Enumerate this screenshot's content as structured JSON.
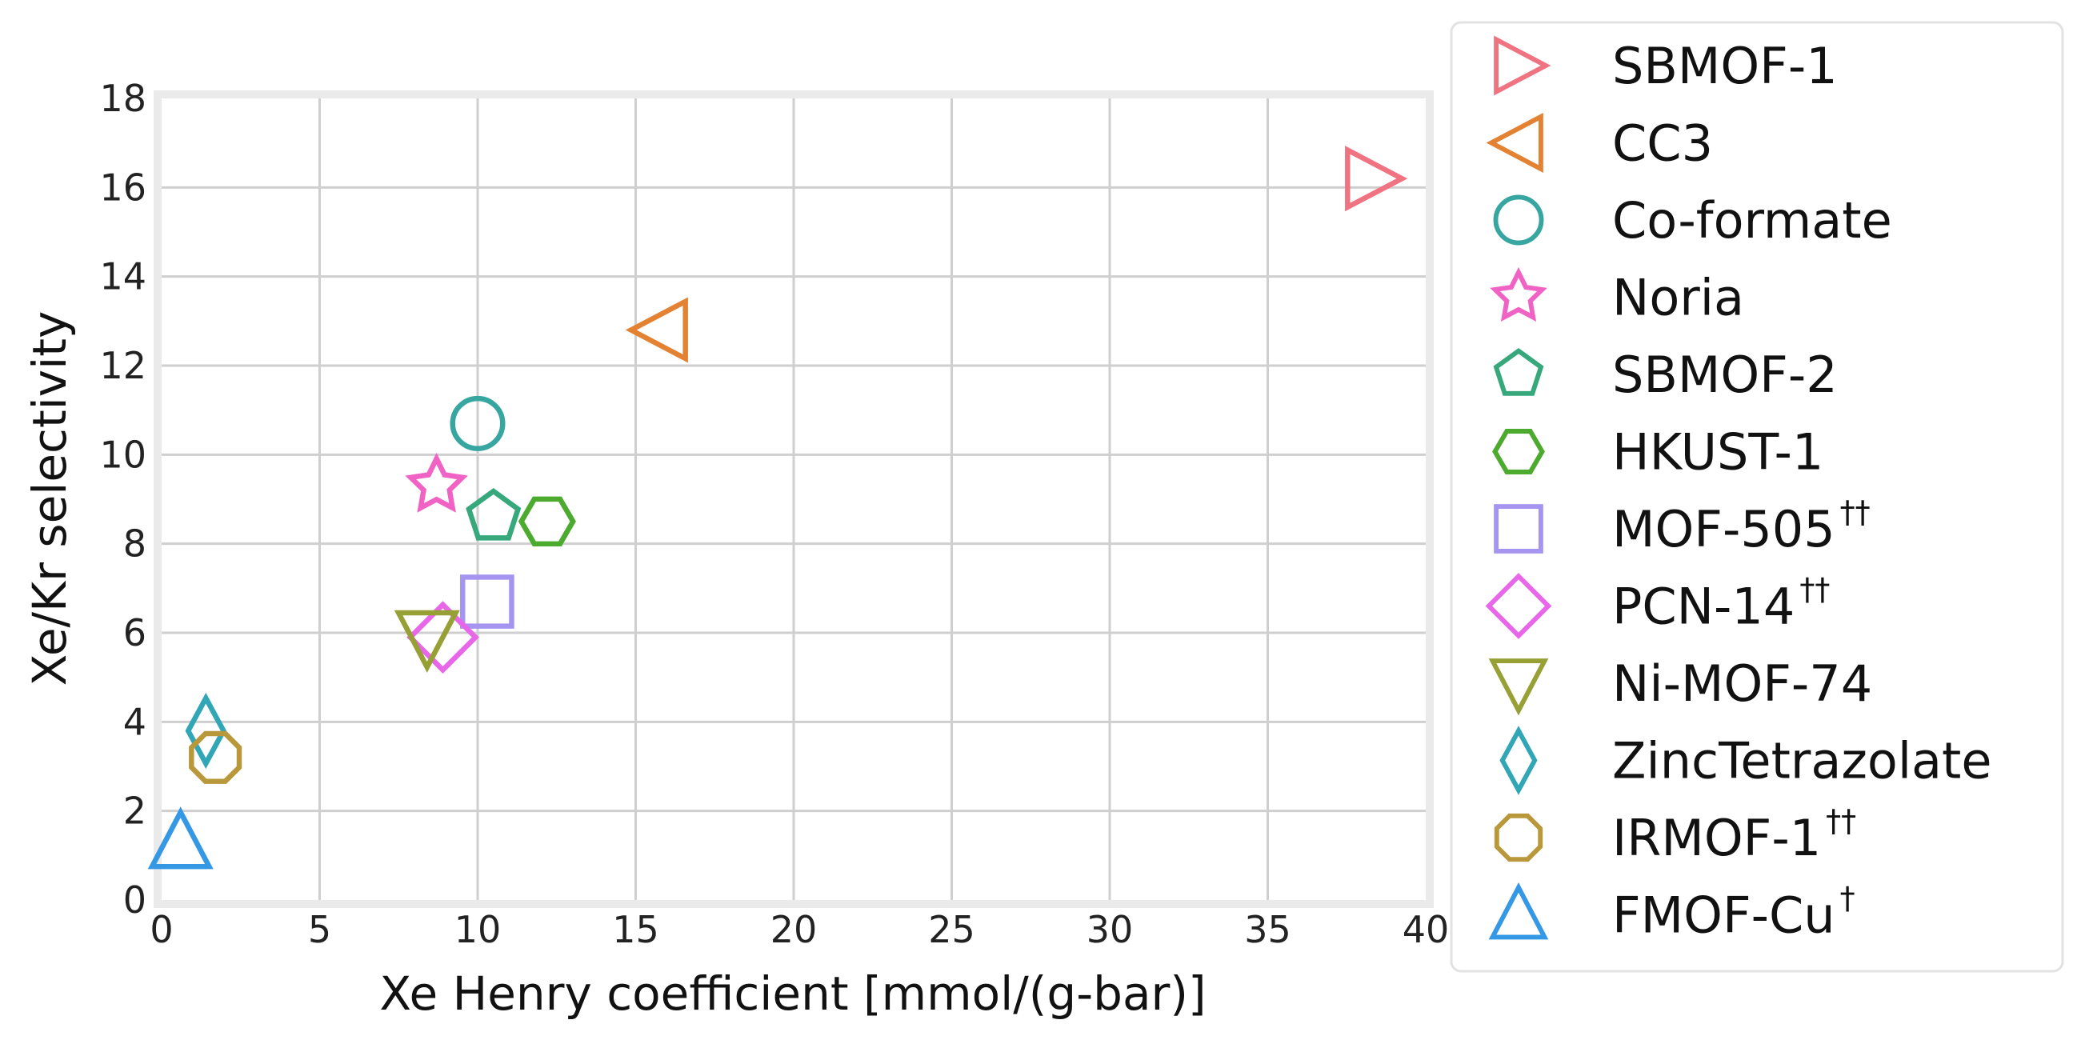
{
  "chart_data": {
    "type": "scatter",
    "title": "",
    "xlabel": "Xe Henry coefficient [mmol/(g-bar)]",
    "ylabel": "Xe/Kr selectivity",
    "xlim": [
      0,
      40
    ],
    "ylim": [
      0,
      18
    ],
    "x_ticks": [
      0,
      5,
      10,
      15,
      20,
      25,
      30,
      35,
      40
    ],
    "y_ticks": [
      0,
      2,
      4,
      6,
      8,
      10,
      12,
      14,
      16,
      18
    ],
    "grid": true,
    "legend_position": "right, outside plot",
    "series": [
      {
        "name": "SBMOF-1",
        "suffix": "",
        "marker": "triangle-right",
        "color": "#f07382",
        "x": 38.3,
        "y": 16.2
      },
      {
        "name": "CC3",
        "suffix": "",
        "marker": "triangle-left",
        "color": "#e48233",
        "x": 15.8,
        "y": 12.8
      },
      {
        "name": "Co-formate",
        "suffix": "",
        "marker": "circle",
        "color": "#37a6a0",
        "x": 10.0,
        "y": 10.7
      },
      {
        "name": "Noria",
        "suffix": "",
        "marker": "star",
        "color": "#f062c4",
        "x": 8.7,
        "y": 9.3
      },
      {
        "name": "SBMOF-2",
        "suffix": "",
        "marker": "pentagon",
        "color": "#36a87c",
        "x": 10.5,
        "y": 8.6
      },
      {
        "name": "HKUST-1",
        "suffix": "",
        "marker": "hexagon",
        "color": "#4caa2f",
        "x": 12.2,
        "y": 8.5
      },
      {
        "name": "MOF-505",
        "suffix": "††",
        "marker": "square",
        "color": "#a595f0",
        "x": 10.3,
        "y": 6.7
      },
      {
        "name": "PCN-14",
        "suffix": "††",
        "marker": "diamond",
        "color": "#e767e8",
        "x": 8.9,
        "y": 5.9
      },
      {
        "name": "Ni-MOF-74",
        "suffix": "",
        "marker": "triangle-down",
        "color": "#97a035",
        "x": 8.4,
        "y": 5.9
      },
      {
        "name": "ZincTetrazolate",
        "suffix": "",
        "marker": "thin-diamond",
        "color": "#31a6b6",
        "x": 1.4,
        "y": 3.8
      },
      {
        "name": "IRMOF-1",
        "suffix": "††",
        "marker": "octagon",
        "color": "#b8983a",
        "x": 1.7,
        "y": 3.2
      },
      {
        "name": "FMOF-Cu",
        "suffix": "†",
        "marker": "triangle-up",
        "color": "#3498e4",
        "x": 0.6,
        "y": 1.3
      }
    ]
  }
}
